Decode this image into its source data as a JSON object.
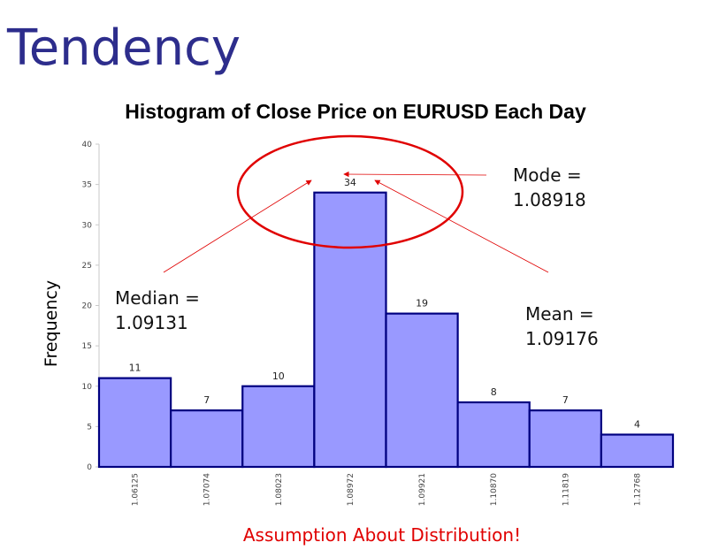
{
  "slide_title": "Tendency",
  "annotations": {
    "mode": [
      "Mode =",
      "1.08918"
    ],
    "median": [
      "Median =",
      "1.09131"
    ],
    "mean": [
      "Mean =",
      "1.09176"
    ]
  },
  "footer_note": "Assumption About Distribution!",
  "colors": {
    "title": "#2d2d8c",
    "bar_fill": "#9999ff",
    "bar_stroke": "#000080",
    "highlight": "#e00000"
  },
  "chart_data": {
    "type": "bar",
    "title": "Histogram of Close Price on EURUSD Each Day",
    "xlabel": "",
    "ylabel": "Frequency",
    "categories": [
      "1.06125",
      "1.07074",
      "1.08023",
      "1.08972",
      "1.09921",
      "1.10870",
      "1.11819",
      "1.12768"
    ],
    "values": [
      11,
      7,
      10,
      34,
      19,
      8,
      7,
      4
    ],
    "yticks": [
      0,
      5,
      10,
      15,
      20,
      25,
      30,
      35,
      40
    ],
    "ylim": [
      0,
      40
    ],
    "grid": false,
    "data_labels": true
  }
}
